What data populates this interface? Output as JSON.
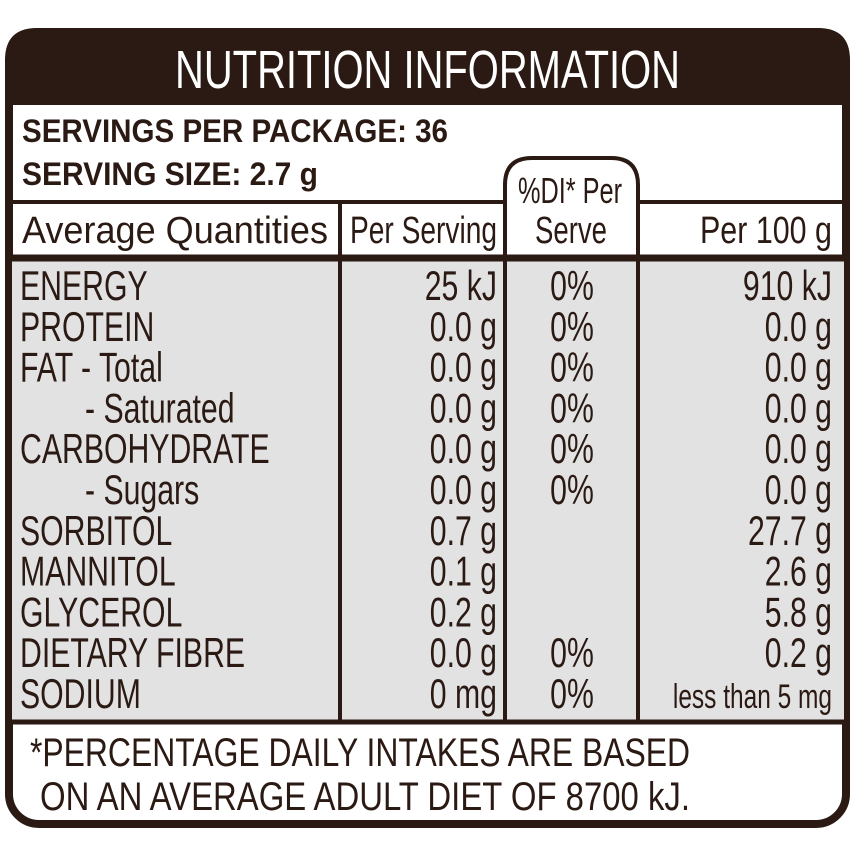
{
  "header": {
    "title": "NUTRITION INFORMATION"
  },
  "servings": [
    "SERVINGS PER PACKAGE: 36",
    "SERVING SIZE: 2.7 g"
  ],
  "table": {
    "columns": [
      "Average Quantities",
      "Per Serving",
      [
        "%DI* Per",
        "Serve"
      ],
      "Per 100 g"
    ],
    "rows": [
      [
        "ENERGY",
        "25 kJ",
        "0%",
        "910 kJ"
      ],
      [
        "PROTEIN",
        "0.0 g",
        "0%",
        "0.0 g"
      ],
      [
        "FAT - Total",
        "0.0 g",
        "0%",
        "0.0 g"
      ],
      [
        "- Saturated",
        "0.0 g",
        "0%",
        "0.0 g"
      ],
      [
        "CARBOHYDRATE",
        "0.0 g",
        "0%",
        "0.0 g"
      ],
      [
        "- Sugars",
        "0.0 g",
        "0%",
        "0.0 g"
      ],
      [
        "SORBITOL",
        "0.7 g",
        null,
        "27.7 g"
      ],
      [
        "MANNITOL",
        "0.1 g",
        null,
        "2.6 g"
      ],
      [
        "GLYCEROL",
        "0.2 g",
        null,
        "5.8 g"
      ],
      [
        "DIETARY FIBRE",
        "0.0 g",
        "0%",
        "0.2 g"
      ],
      [
        "SODIUM",
        "0 mg",
        "0%",
        "less than 5 mg"
      ]
    ]
  },
  "footnote": [
    "*PERCENTAGE DAILY INTAKES ARE BASED",
    "ON AN AVERAGE ADULT DIET OF 8700 kJ."
  ]
}
